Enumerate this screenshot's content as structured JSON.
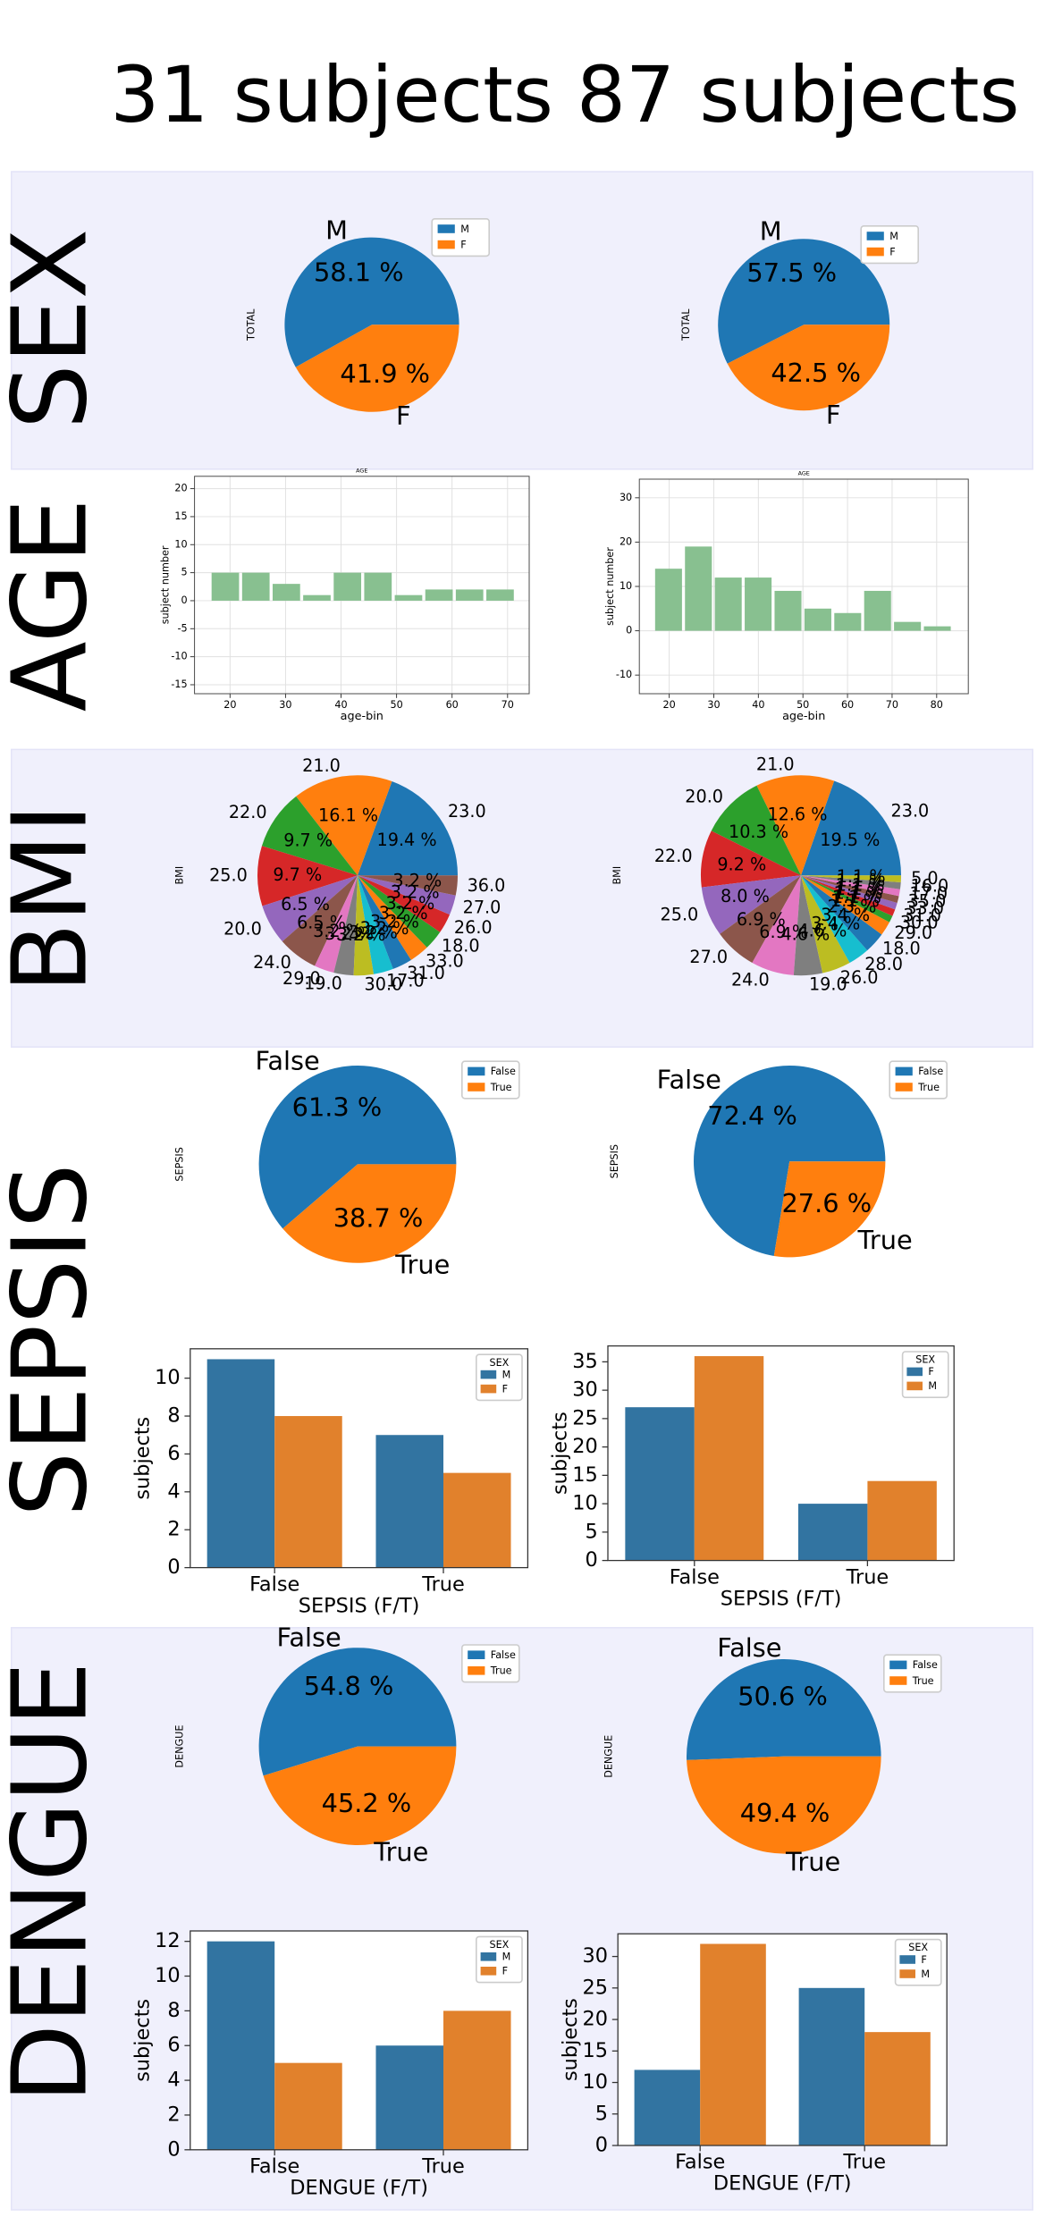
{
  "columns": [
    "31 subjects",
    "87 subjects"
  ],
  "rows": [
    "SEX",
    "AGE",
    "BMI",
    "SEPSIS",
    "DENGUE"
  ],
  "chart_data": [
    {
      "type": "pie",
      "ylabel": "TOTAL",
      "categories": [
        "M",
        "F"
      ],
      "values": [
        58.1,
        41.9
      ],
      "value_labels": [
        "58.1 %",
        "41.9 %"
      ],
      "colors": [
        "#1f77b4",
        "#ff7f0e"
      ],
      "legend": "upper right"
    },
    {
      "type": "pie",
      "ylabel": "TOTAL",
      "categories": [
        "M",
        "F"
      ],
      "values": [
        57.5,
        42.5
      ],
      "value_labels": [
        "57.5 %",
        "42.5 %"
      ],
      "colors": [
        "#1f77b4",
        "#ff7f0e"
      ],
      "legend": "upper right"
    },
    {
      "type": "histogram",
      "title": "AGE",
      "xlabel": "age-bin",
      "ylabel": "subject number",
      "bins": [
        16.4,
        21.9,
        27.4,
        32.9,
        38.4,
        43.9,
        49.4,
        54.9,
        60.4,
        65.9,
        71.4
      ],
      "values": [
        5,
        5,
        3,
        1,
        5,
        5,
        1,
        2,
        2,
        2
      ],
      "color": "#88c090",
      "xlim": [
        13.6,
        73.9
      ],
      "ylim": [
        -16.6,
        22.2
      ],
      "xticks": [
        20,
        30,
        40,
        50,
        60,
        70
      ],
      "yticks": [
        -15,
        -10,
        -5,
        0,
        5,
        10,
        15,
        20
      ],
      "grid": true
    },
    {
      "type": "histogram",
      "title": "AGE",
      "xlabel": "age-bin",
      "ylabel": "subject number",
      "bins": [
        16.5,
        23.2,
        29.9,
        36.6,
        43.3,
        50,
        56.7,
        63.4,
        70.1,
        76.8,
        83.5
      ],
      "values": [
        14,
        19,
        12,
        12,
        9,
        5,
        4,
        9,
        2,
        1
      ],
      "color": "#88c090",
      "xlim": [
        13.3,
        87.1
      ],
      "ylim": [
        -14.2,
        34.2
      ],
      "xticks": [
        20,
        30,
        40,
        50,
        60,
        70,
        80
      ],
      "yticks": [
        -10,
        0,
        10,
        20,
        30
      ],
      "grid": true
    },
    {
      "type": "pie",
      "ylabel": "BMI",
      "categories": [
        "23.0",
        "21.0",
        "22.0",
        "25.0",
        "20.0",
        "24.0",
        "29.0",
        "19.0",
        "30.0",
        "17.0",
        "31.0",
        "33.0",
        "18.0",
        "26.0",
        "27.0",
        "36.0"
      ],
      "values": [
        19.4,
        16.1,
        9.7,
        9.7,
        6.5,
        6.5,
        3.2,
        3.2,
        3.2,
        3.2,
        3.2,
        3.2,
        3.2,
        3.2,
        3.2,
        3.2
      ],
      "value_labels": [
        "19.4 %",
        "16.1 %",
        "9.7 %",
        "9.7 %",
        "6.5 %",
        "6.5 %",
        "3.2 %",
        "3.2 %",
        "3.2 %",
        "3.2 %",
        "3.2 %",
        "3.2 %",
        "3.2 %",
        "3.2 %",
        "3.2 %",
        "3.2 %"
      ],
      "colors": [
        "#1f77b4",
        "#ff7f0e",
        "#2ca02c",
        "#d62728",
        "#9467bd",
        "#8c564b",
        "#e377c2",
        "#7f7f7f",
        "#bcbd22",
        "#17becf"
      ]
    },
    {
      "type": "pie",
      "ylabel": "BMI",
      "categories": [
        "23.0",
        "21.0",
        "20.0",
        "22.0",
        "25.0",
        "27.0",
        "24.0",
        "19.0",
        "26.0",
        "28.0",
        "18.0",
        "29.0",
        "30.0",
        "31.0",
        "33.0",
        "35.0",
        "17.0",
        "16.0",
        "5.0"
      ],
      "values": [
        19.5,
        12.6,
        10.3,
        9.2,
        8.0,
        6.9,
        6.9,
        4.6,
        4.6,
        3.4,
        3.4,
        2.3,
        1.1,
        1.1,
        1.1,
        1.1,
        1.1,
        1.1,
        1.1
      ],
      "value_labels": [
        "19.5 %",
        "12.6 %",
        "10.3 %",
        "9.2 %",
        "8.0 %",
        "6.9 %",
        "6.9 %",
        "4.6 %",
        "4.6 %",
        "3.4 %",
        "3.4 %",
        "2.3 %",
        "1.1 %",
        "1.1 %",
        "1.1 %",
        "1.1 %",
        "1.1 %",
        "1.1 %",
        "1.1 %"
      ],
      "colors": [
        "#1f77b4",
        "#ff7f0e",
        "#2ca02c",
        "#d62728",
        "#9467bd",
        "#8c564b",
        "#e377c2",
        "#7f7f7f",
        "#bcbd22",
        "#17becf"
      ]
    },
    {
      "type": "pie",
      "ylabel": "SEPSIS",
      "categories": [
        "False",
        "True"
      ],
      "values": [
        61.3,
        38.7
      ],
      "value_labels": [
        "61.3 %",
        "38.7 %"
      ],
      "colors": [
        "#1f77b4",
        "#ff7f0e"
      ],
      "legend": "upper right"
    },
    {
      "type": "pie",
      "ylabel": "SEPSIS",
      "categories": [
        "False",
        "True"
      ],
      "values": [
        72.4,
        27.6
      ],
      "value_labels": [
        "72.4 %",
        "27.6 %"
      ],
      "colors": [
        "#1f77b4",
        "#ff7f0e"
      ],
      "legend": "upper right"
    },
    {
      "type": "bar",
      "xlabel": "SEPSIS (F/T)",
      "ylabel": "subjects",
      "categories": [
        "False",
        "True"
      ],
      "legend_title": "SEX",
      "legend": "upper right",
      "series": [
        {
          "name": "M",
          "color": "#3274a1",
          "values": [
            11,
            7
          ]
        },
        {
          "name": "F",
          "color": "#e1812c",
          "values": [
            8,
            5
          ]
        }
      ],
      "ylim": [
        0,
        11.55
      ],
      "yticks": [
        0,
        2,
        4,
        6,
        8,
        10
      ]
    },
    {
      "type": "bar",
      "xlabel": "SEPSIS (F/T)",
      "ylabel": "subjects",
      "categories": [
        "False",
        "True"
      ],
      "legend_title": "SEX",
      "legend": "upper right",
      "series": [
        {
          "name": "F",
          "color": "#3274a1",
          "values": [
            27,
            10
          ]
        },
        {
          "name": "M",
          "color": "#e1812c",
          "values": [
            36,
            14
          ]
        }
      ],
      "ylim": [
        0,
        37.8
      ],
      "yticks": [
        0,
        5,
        10,
        15,
        20,
        25,
        30,
        35
      ]
    },
    {
      "type": "pie",
      "ylabel": "DENGUE",
      "categories": [
        "False",
        "True"
      ],
      "values": [
        54.8,
        45.2
      ],
      "value_labels": [
        "54.8 %",
        "45.2 %"
      ],
      "colors": [
        "#1f77b4",
        "#ff7f0e"
      ],
      "legend": "upper right"
    },
    {
      "type": "pie",
      "ylabel": "DENGUE",
      "categories": [
        "False",
        "True"
      ],
      "values": [
        50.6,
        49.4
      ],
      "value_labels": [
        "50.6 %",
        "49.4 %"
      ],
      "colors": [
        "#1f77b4",
        "#ff7f0e"
      ],
      "legend": "upper right"
    },
    {
      "type": "bar",
      "xlabel": "DENGUE (F/T)",
      "ylabel": "subjects",
      "categories": [
        "False",
        "True"
      ],
      "legend_title": "SEX",
      "legend": "upper right",
      "series": [
        {
          "name": "M",
          "color": "#3274a1",
          "values": [
            12,
            6
          ]
        },
        {
          "name": "F",
          "color": "#e1812c",
          "values": [
            5,
            8
          ]
        }
      ],
      "ylim": [
        0,
        12.6
      ],
      "yticks": [
        0,
        2,
        4,
        6,
        8,
        10,
        12
      ]
    },
    {
      "type": "bar",
      "xlabel": "DENGUE (F/T)",
      "ylabel": "subjects",
      "categories": [
        "False",
        "True"
      ],
      "legend_title": "SEX",
      "legend": "upper right",
      "series": [
        {
          "name": "F",
          "color": "#3274a1",
          "values": [
            12,
            25
          ]
        },
        {
          "name": "M",
          "color": "#e1812c",
          "values": [
            32,
            18
          ]
        }
      ],
      "ylim": [
        0,
        33.6
      ],
      "yticks": [
        0,
        5,
        10,
        15,
        20,
        25,
        30
      ]
    }
  ]
}
